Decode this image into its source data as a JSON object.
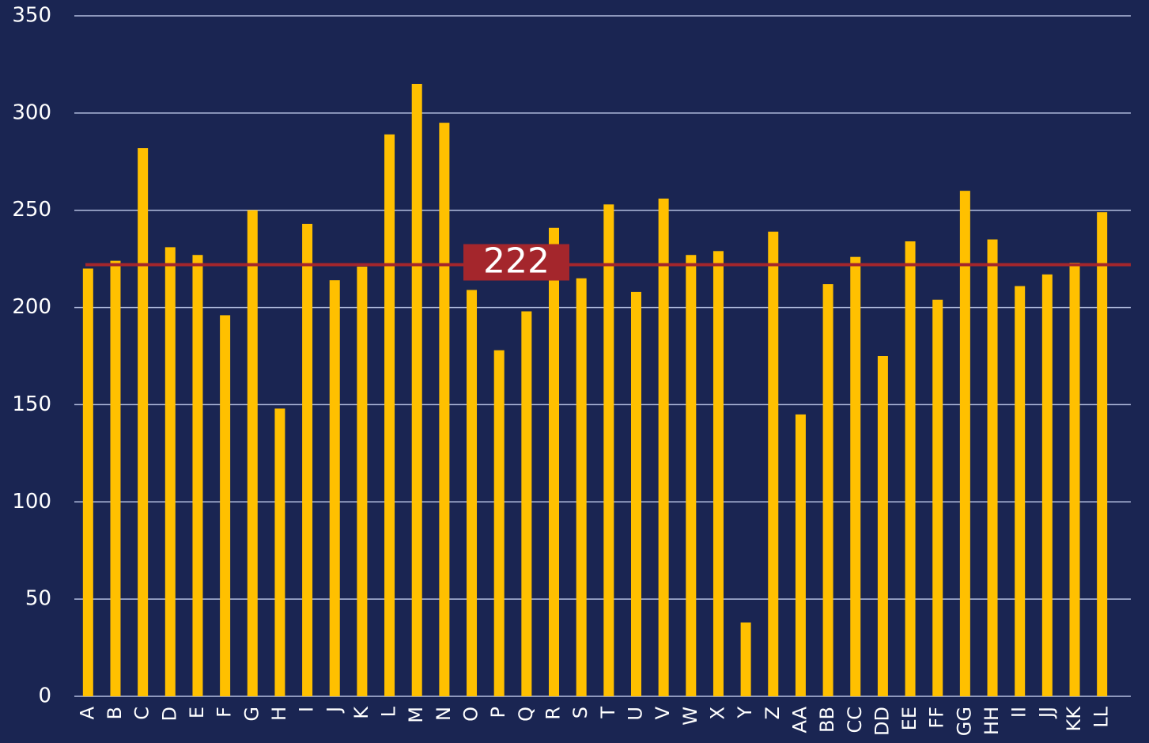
{
  "chart_data": {
    "type": "bar",
    "categories": [
      "A",
      "B",
      "C",
      "D",
      "E",
      "F",
      "G",
      "H",
      "I",
      "J",
      "K",
      "L",
      "M",
      "N",
      "O",
      "P",
      "Q",
      "R",
      "S",
      "T",
      "U",
      "V",
      "W",
      "X",
      "Y",
      "Z",
      "AA",
      "BB",
      "CC",
      "DD",
      "EE",
      "FF",
      "GG",
      "HH",
      "II",
      "JJ",
      "KK",
      "LL"
    ],
    "values": [
      220,
      224,
      282,
      231,
      227,
      196,
      250,
      148,
      243,
      214,
      221,
      289,
      315,
      295,
      209,
      178,
      198,
      241,
      215,
      253,
      208,
      256,
      227,
      229,
      38,
      239,
      145,
      212,
      226,
      175,
      234,
      204,
      260,
      235,
      211,
      217,
      223,
      249
    ],
    "color": "#ffc000",
    "ylim": [
      0,
      350
    ],
    "yticks": [
      0,
      50,
      100,
      150,
      200,
      250,
      300,
      350
    ],
    "grid": true,
    "reference_line": {
      "value": 222,
      "color": "#a4262c"
    }
  }
}
